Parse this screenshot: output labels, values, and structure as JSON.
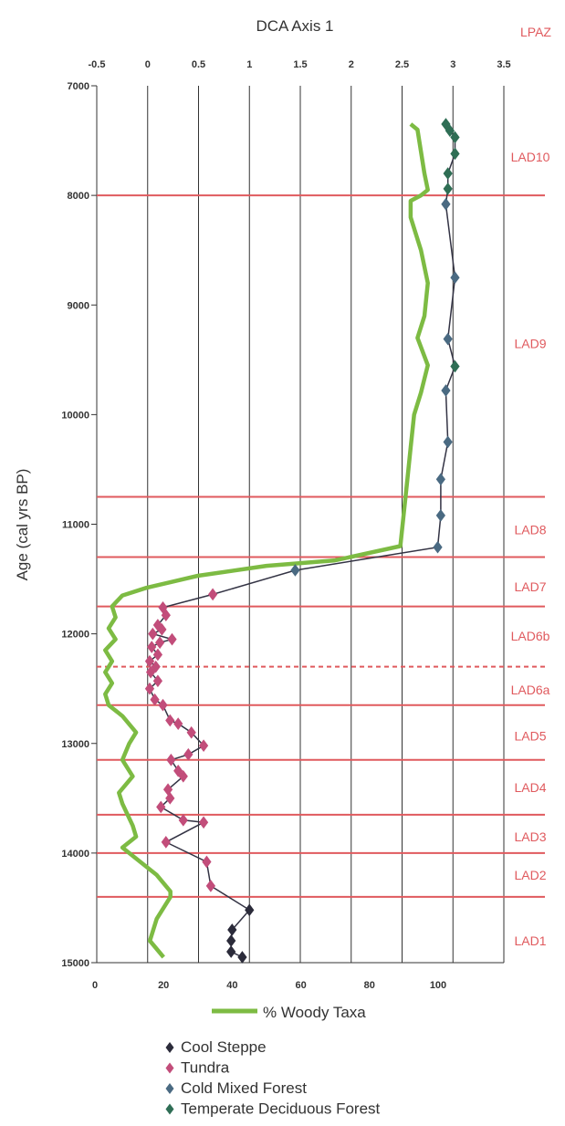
{
  "chart_data": {
    "type": "line",
    "top_axis": {
      "label": "DCA Axis 1",
      "ticks": [
        "-0.5",
        "0",
        "0.5",
        "1",
        "1.5",
        "2",
        "2.5",
        "3",
        "3.5"
      ],
      "range": [
        -0.5,
        3.5
      ]
    },
    "bottom_axis": {
      "ticks": [
        "0",
        "20",
        "40",
        "60",
        "80",
        "100"
      ],
      "range": [
        0,
        100
      ]
    },
    "y_axis": {
      "label": "Age (cal yrs BP)",
      "ticks": [
        "7000",
        "8000",
        "9000",
        "10000",
        "11000",
        "12000",
        "13000",
        "14000",
        "15000"
      ],
      "range": [
        7000,
        15000
      ],
      "reversed": true
    },
    "zone_header": "LPAZ",
    "zone_boundaries": [
      {
        "age": 8000,
        "style": "solid"
      },
      {
        "age": 10750,
        "style": "solid"
      },
      {
        "age": 11300,
        "style": "solid"
      },
      {
        "age": 11750,
        "style": "solid"
      },
      {
        "age": 12300,
        "style": "dashed"
      },
      {
        "age": 12650,
        "style": "solid"
      },
      {
        "age": 13150,
        "style": "solid"
      },
      {
        "age": 13650,
        "style": "solid"
      },
      {
        "age": 14000,
        "style": "solid"
      },
      {
        "age": 14400,
        "style": "solid"
      }
    ],
    "zones": [
      {
        "label": "LAD10",
        "age": 7650
      },
      {
        "label": "LAD9",
        "age": 9350
      },
      {
        "label": "LAD8",
        "age": 11050
      },
      {
        "label": "LAD7",
        "age": 11570
      },
      {
        "label": "LAD6b",
        "age": 12020
      },
      {
        "label": "LAD6a",
        "age": 12510
      },
      {
        "label": "LAD5",
        "age": 12930
      },
      {
        "label": "LAD4",
        "age": 13400
      },
      {
        "label": "LAD3",
        "age": 13850
      },
      {
        "label": "LAD2",
        "age": 14200
      },
      {
        "label": "LAD1",
        "age": 14800
      }
    ],
    "woody_series": {
      "name": "% Woody Taxa",
      "color": "#7dbb43",
      "points": [
        [
          92,
          7350
        ],
        [
          94,
          7400
        ],
        [
          95,
          7600
        ],
        [
          96,
          7800
        ],
        [
          97,
          7950
        ],
        [
          95,
          8000
        ],
        [
          92,
          8050
        ],
        [
          92,
          8200
        ],
        [
          95,
          8500
        ],
        [
          97,
          8800
        ],
        [
          96,
          9100
        ],
        [
          94,
          9300
        ],
        [
          97,
          9550
        ],
        [
          95,
          9800
        ],
        [
          93,
          10000
        ],
        [
          92,
          10300
        ],
        [
          91,
          10600
        ],
        [
          90,
          10900
        ],
        [
          89,
          11200
        ],
        [
          70,
          11330
        ],
        [
          50,
          11380
        ],
        [
          30,
          11470
        ],
        [
          15,
          11580
        ],
        [
          8,
          11650
        ],
        [
          5,
          11750
        ],
        [
          6,
          11850
        ],
        [
          4,
          11950
        ],
        [
          6,
          12050
        ],
        [
          3,
          12150
        ],
        [
          5,
          12250
        ],
        [
          3,
          12350
        ],
        [
          5,
          12450
        ],
        [
          3,
          12550
        ],
        [
          4,
          12650
        ],
        [
          8,
          12750
        ],
        [
          12,
          12900
        ],
        [
          10,
          13000
        ],
        [
          8,
          13150
        ],
        [
          11,
          13300
        ],
        [
          7,
          13450
        ],
        [
          8,
          13550
        ],
        [
          11,
          13750
        ],
        [
          12,
          13850
        ],
        [
          8,
          13950
        ],
        [
          12,
          14050
        ],
        [
          18,
          14200
        ],
        [
          22,
          14350
        ],
        [
          22,
          14400
        ],
        [
          18,
          14600
        ],
        [
          16,
          14800
        ],
        [
          20,
          14950
        ]
      ]
    },
    "dca_series": {
      "line_color": "#333344",
      "groups": [
        {
          "name": "Cool Steppe",
          "color": "#2b2b3a",
          "points": [
            [
              0.93,
              14950
            ],
            [
              0.82,
              14900
            ],
            [
              0.82,
              14800
            ],
            [
              0.83,
              14700
            ],
            [
              1.0,
              14520
            ]
          ]
        },
        {
          "name": "Tundra",
          "color": "#c24d7a",
          "points": [
            [
              0.62,
              14300
            ],
            [
              0.58,
              14080
            ],
            [
              0.18,
              13900
            ],
            [
              0.55,
              13720
            ],
            [
              0.35,
              13700
            ],
            [
              0.13,
              13580
            ],
            [
              0.22,
              13500
            ],
            [
              0.2,
              13420
            ],
            [
              0.35,
              13300
            ],
            [
              0.3,
              13250
            ],
            [
              0.4,
              13100
            ],
            [
              0.23,
              13150
            ],
            [
              0.55,
              13020
            ],
            [
              0.43,
              12900
            ],
            [
              0.3,
              12820
            ],
            [
              0.22,
              12790
            ],
            [
              0.15,
              12650
            ],
            [
              0.07,
              12600
            ],
            [
              0.02,
              12500
            ],
            [
              0.1,
              12430
            ],
            [
              0.03,
              12350
            ],
            [
              0.08,
              12300
            ],
            [
              0.02,
              12250
            ],
            [
              0.1,
              12190
            ],
            [
              0.04,
              12120
            ],
            [
              0.12,
              12080
            ],
            [
              0.05,
              12000
            ],
            [
              0.24,
              12050
            ],
            [
              0.14,
              11960
            ],
            [
              0.1,
              11920
            ],
            [
              0.18,
              11830
            ],
            [
              0.15,
              11760
            ],
            [
              0.64,
              11640
            ]
          ]
        },
        {
          "name": "Cold Mixed Forest",
          "color": "#4a6a82",
          "points": [
            [
              1.45,
              11420
            ],
            [
              2.85,
              11210
            ],
            [
              2.88,
              10920
            ],
            [
              2.88,
              10590
            ],
            [
              2.95,
              10250
            ],
            [
              2.93,
              9780
            ],
            [
              2.95,
              9310
            ],
            [
              3.02,
              8750
            ],
            [
              2.93,
              8080
            ]
          ]
        },
        {
          "name": "Temperate Deciduous Forest",
          "color": "#2f6e55",
          "points": [
            [
              3.02,
              9560
            ],
            [
              2.95,
              7940
            ],
            [
              2.95,
              7800
            ],
            [
              3.02,
              7620
            ],
            [
              3.02,
              7470
            ],
            [
              2.97,
              7410
            ],
            [
              2.93,
              7350
            ]
          ]
        }
      ]
    },
    "legend": {
      "line_label": "% Woody Taxa",
      "marker_labels": [
        "Cool Steppe",
        "Tundra",
        "Cold Mixed Forest",
        "Temperate Deciduous Forest"
      ]
    }
  }
}
